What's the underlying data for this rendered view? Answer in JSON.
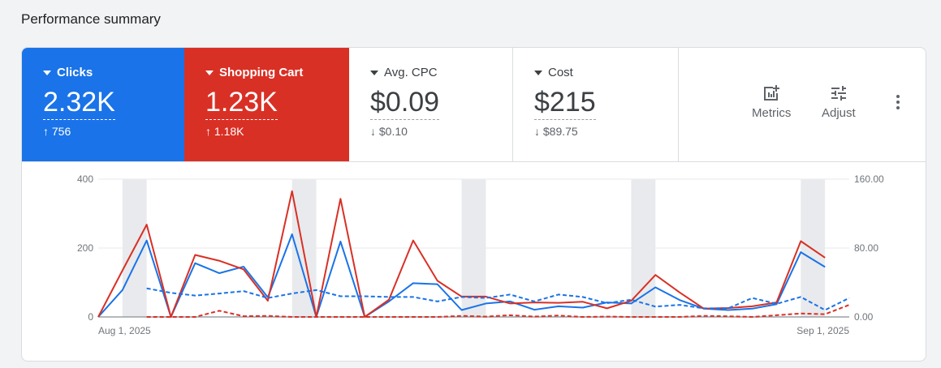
{
  "page_title": "Performance summary",
  "metrics": [
    {
      "label": "Clicks",
      "value": "2.32K",
      "change": "↑ 756",
      "color": "#1a73e8"
    },
    {
      "label": "Shopping Cart",
      "value": "1.23K",
      "change": "↑ 1.18K",
      "color": "#d93025"
    },
    {
      "label": "Avg. CPC",
      "value": "$0.09",
      "change": "↓ $0.10"
    },
    {
      "label": "Cost",
      "value": "$215",
      "change": "↓ $89.75"
    }
  ],
  "actions": {
    "metrics_label": "Metrics",
    "adjust_label": "Adjust"
  },
  "chart_data": {
    "type": "line",
    "x_start_label": "Aug 1, 2025",
    "x_end_label": "Sep 1, 2025",
    "left_axis": {
      "ticks": [
        "0",
        "200",
        "400"
      ],
      "range": [
        0,
        400
      ]
    },
    "right_axis": {
      "ticks": [
        "0.00",
        "80.00",
        "160.00"
      ],
      "range": [
        0,
        160
      ]
    },
    "weekend_bands": [
      [
        1,
        2
      ],
      [
        8,
        9
      ],
      [
        15,
        16
      ],
      [
        22,
        23
      ],
      [
        29,
        30
      ]
    ],
    "series": [
      {
        "color": "#1a73e8",
        "style": "solid",
        "start_day": 0,
        "values": [
          0,
          78,
          222,
          0,
          156,
          127,
          146,
          57,
          240,
          0,
          219,
          0,
          45,
          98,
          95,
          20,
          39,
          45,
          21,
          31,
          27,
          42,
          39,
          86,
          49,
          24,
          20,
          24,
          37,
          188,
          145
        ]
      },
      {
        "color": "#d93025",
        "style": "solid",
        "start_day": 0,
        "values": [
          0,
          135,
          268,
          0,
          180,
          163,
          138,
          47,
          365,
          0,
          343,
          0,
          50,
          222,
          105,
          59,
          59,
          39,
          42,
          41,
          44,
          25,
          47,
          122,
          71,
          24,
          26,
          31,
          42,
          220,
          172
        ]
      },
      {
        "color": "#1a73e8",
        "style": "dashed",
        "start_day": 2,
        "values": [
          83,
          70,
          62,
          68,
          75,
          55,
          68,
          78,
          60,
          60,
          58,
          58,
          45,
          58,
          55,
          65,
          45,
          65,
          58,
          40,
          50,
          30,
          35,
          25,
          25,
          55,
          38,
          58,
          20,
          55
        ]
      },
      {
        "color": "#d93025",
        "style": "dashed",
        "start_day": 2,
        "values": [
          0,
          0,
          0,
          18,
          2,
          3,
          0,
          0,
          0,
          0,
          0,
          0,
          0,
          3,
          1,
          5,
          1,
          4,
          0,
          1,
          0,
          0,
          0,
          3,
          2,
          0,
          5,
          10,
          8,
          35
        ]
      }
    ]
  }
}
